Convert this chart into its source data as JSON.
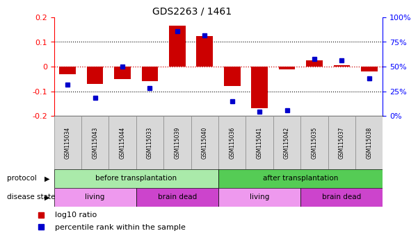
{
  "title": "GDS2263 / 1461",
  "samples": [
    "GSM115034",
    "GSM115043",
    "GSM115044",
    "GSM115033",
    "GSM115039",
    "GSM115040",
    "GSM115036",
    "GSM115041",
    "GSM115042",
    "GSM115035",
    "GSM115037",
    "GSM115038"
  ],
  "log10_ratio": [
    -0.03,
    -0.07,
    -0.05,
    -0.06,
    0.165,
    0.125,
    -0.08,
    -0.17,
    -0.01,
    0.025,
    0.005,
    -0.02
  ],
  "percentile_rank": [
    32,
    18,
    50,
    28,
    86,
    82,
    15,
    4,
    6,
    58,
    56,
    38
  ],
  "ylim_left": [
    -0.2,
    0.2
  ],
  "ylim_right": [
    0,
    100
  ],
  "bar_color": "#cc0000",
  "dot_color": "#0000cc",
  "background_color": "#ffffff",
  "protocol_before_label": "before transplantation",
  "protocol_after_label": "after transplantation",
  "protocol_before_color": "#aaeaaa",
  "protocol_after_color": "#55cc55",
  "living_color": "#ee99ee",
  "brain_dead_color": "#cc44cc",
  "legend_red_label": "log10 ratio",
  "legend_blue_label": "percentile rank within the sample",
  "dotted_line_color": "#000000",
  "zero_line_color": "#cc0000"
}
